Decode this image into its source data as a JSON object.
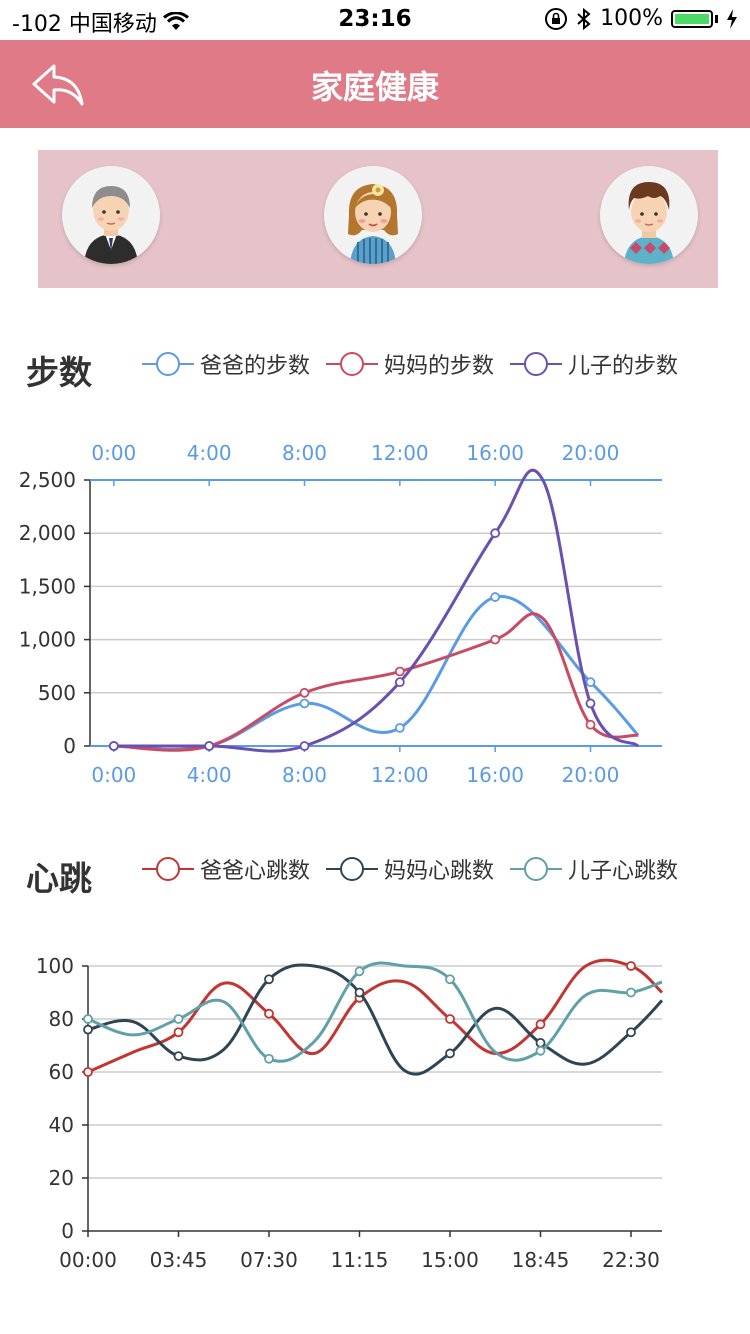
{
  "status_bar": {
    "carrier": "-102 中国移动",
    "time": "23:16",
    "battery": "100%",
    "battery_level": 1.0
  },
  "nav": {
    "title": "家庭健康",
    "back_icon": "back-arrow-icon"
  },
  "family": {
    "members": [
      {
        "avatar": "father-avatar"
      },
      {
        "avatar": "mother-avatar"
      },
      {
        "avatar": "son-avatar"
      }
    ]
  },
  "steps_section": {
    "title": "步数",
    "legend": [
      "爸爸的步数",
      "妈妈的步数",
      "儿子的步数"
    ]
  },
  "heart_section": {
    "title": "心跳",
    "legend": [
      "爸爸心跳数",
      "妈妈心跳数",
      "儿子心跳数"
    ]
  },
  "chart_data": [
    {
      "type": "line",
      "x": [
        0,
        4,
        8,
        12,
        16,
        20,
        22
      ],
      "x_tick_labels": [
        "0:00",
        "4:00",
        "8:00",
        "12:00",
        "16:00",
        "20:00"
      ],
      "x_ticks": [
        0,
        4,
        8,
        12,
        16,
        20
      ],
      "xlim": [
        -1,
        23
      ],
      "ylim": [
        0,
        2500
      ],
      "y_ticks": [
        0,
        500,
        1000,
        1500,
        2000,
        2500
      ],
      "y_tick_labels": [
        "0",
        "500",
        "1,000",
        "1,500",
        "2,000",
        "2,500"
      ],
      "grid": true,
      "series": [
        {
          "name": "爸爸的步数",
          "color": "#5b9be6",
          "values": [
            0,
            0,
            400,
            170,
            1400,
            600,
            100
          ]
        },
        {
          "name": "妈妈的步数",
          "color": "#c94b63",
          "values": [
            0,
            0,
            500,
            700,
            1000,
            200,
            100
          ]
        },
        {
          "name": "儿子的步数",
          "color": "#6a50b0",
          "values": [
            0,
            0,
            0,
            600,
            2000,
            400,
            0
          ]
        }
      ],
      "extra_points": {
        "儿子的步数": [
          [
            18,
            2500
          ]
        ],
        "妈妈的步数": [
          [
            18,
            1200
          ]
        ]
      }
    },
    {
      "type": "line",
      "x_tick_labels": [
        "00:00",
        "03:45",
        "07:30",
        "11:15",
        "15:00",
        "18:45",
        "22:30"
      ],
      "ylim": [
        0,
        100
      ],
      "y_ticks": [
        0,
        20,
        40,
        60,
        80,
        100
      ],
      "y_tick_labels": [
        "0",
        "20",
        "40",
        "60",
        "80",
        "100"
      ],
      "grid": true,
      "series": [
        {
          "name": "爸爸心跳数",
          "color": "#c23531",
          "values": [
            60,
            75,
            82,
            88,
            80,
            78,
            100
          ]
        },
        {
          "name": "妈妈心跳数",
          "color": "#2f4554",
          "values": [
            76,
            66,
            95,
            90,
            67,
            71,
            75
          ]
        },
        {
          "name": "儿子心跳数",
          "color": "#61a0a8",
          "values": [
            80,
            80,
            65,
            98,
            95,
            68,
            90
          ]
        }
      ]
    }
  ]
}
